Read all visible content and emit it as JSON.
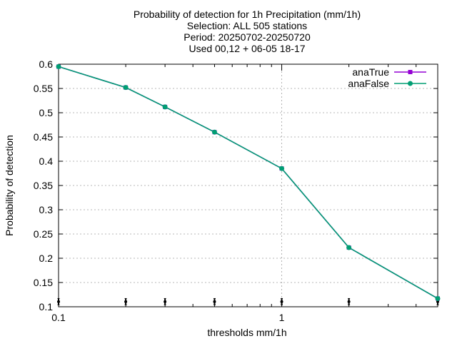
{
  "chart_data": {
    "type": "line",
    "title_lines": [
      "Probability of detection  for 1h Precipitation (mm/1h)",
      "Selection: ALL    505 stations",
      "Period: 20250702-20250720",
      "Used 00,12 + 06-05 18-17"
    ],
    "xlabel": "thresholds mm/1h",
    "ylabel": "Probability of detection",
    "xscale": "log",
    "xlim": [
      0.1,
      5
    ],
    "ylim": [
      0.1,
      0.6
    ],
    "x_ticks": [
      0.1,
      1
    ],
    "x_tick_labels": [
      "0.1",
      "1"
    ],
    "y_ticks": [
      0.1,
      0.15,
      0.2,
      0.25,
      0.3,
      0.35,
      0.4,
      0.45,
      0.5,
      0.55,
      0.6
    ],
    "y_tick_labels": [
      "0.1",
      "0.15",
      "0.2",
      "0.25",
      "0.3",
      "0.35",
      "0.4",
      "0.45",
      "0.5",
      "0.55",
      "0.6"
    ],
    "grid": true,
    "legend_position": "top-right",
    "x": [
      0.1,
      0.2,
      0.3,
      0.5,
      1,
      2,
      5
    ],
    "series": [
      {
        "name": "anaTrue",
        "color": "#9400d3",
        "marker": "square",
        "values": [
          0.595,
          0.552,
          0.512,
          0.46,
          0.385,
          0.222,
          0.117
        ]
      },
      {
        "name": "anaFalse",
        "color": "#009e73",
        "marker": "circle",
        "values": [
          0.595,
          0.552,
          0.512,
          0.46,
          0.385,
          0.222,
          0.117
        ]
      }
    ],
    "error_bars": {
      "color": "#000000",
      "x": [
        0.1,
        0.2,
        0.3,
        0.5,
        1,
        2,
        5
      ],
      "low": [
        0.104,
        0.104,
        0.104,
        0.104,
        0.104,
        0.104,
        0.104
      ],
      "high": [
        0.117,
        0.117,
        0.117,
        0.117,
        0.117,
        0.117,
        0.117
      ]
    }
  }
}
